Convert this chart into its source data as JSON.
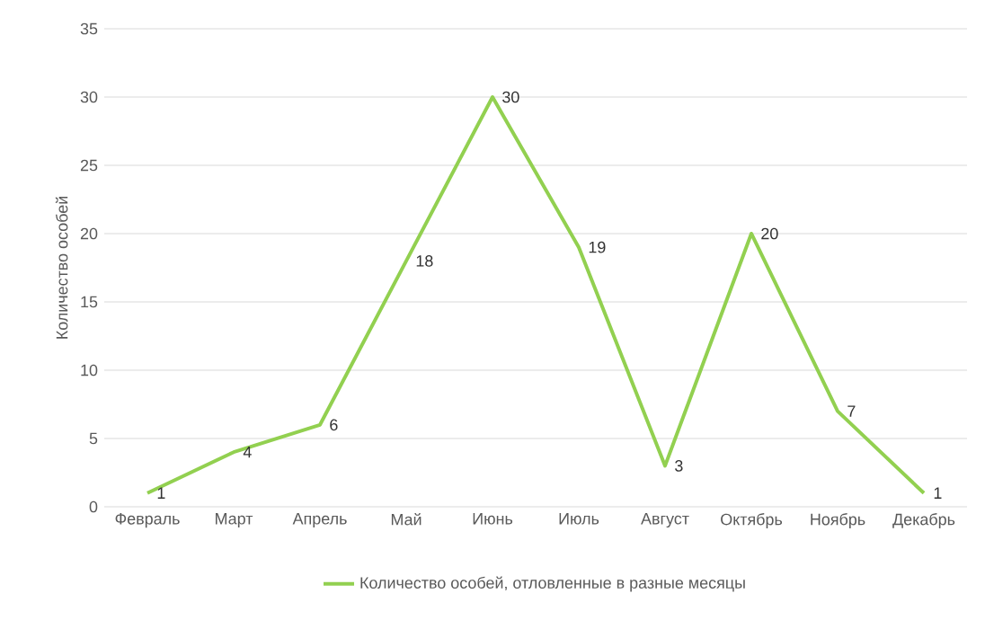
{
  "chart_data": {
    "type": "line",
    "ylabel": "Количество особей",
    "categories": [
      "Февраль",
      "Март",
      "Апрель",
      "Май",
      "Июнь",
      "Июль",
      "Август",
      "Октябрь",
      "Ноябрь",
      "Декабрь"
    ],
    "series": [
      {
        "name": "Количество особей, отловленные в разные месяцы",
        "color": "#92d050",
        "values": [
          1,
          4,
          6,
          18,
          30,
          19,
          3,
          20,
          7,
          1
        ]
      }
    ],
    "ylim": [
      0,
      35
    ],
    "yticks": [
      0,
      5,
      10,
      15,
      20,
      25,
      30,
      35
    ],
    "grid": "y",
    "legend": "bottom",
    "data_labels": true
  }
}
